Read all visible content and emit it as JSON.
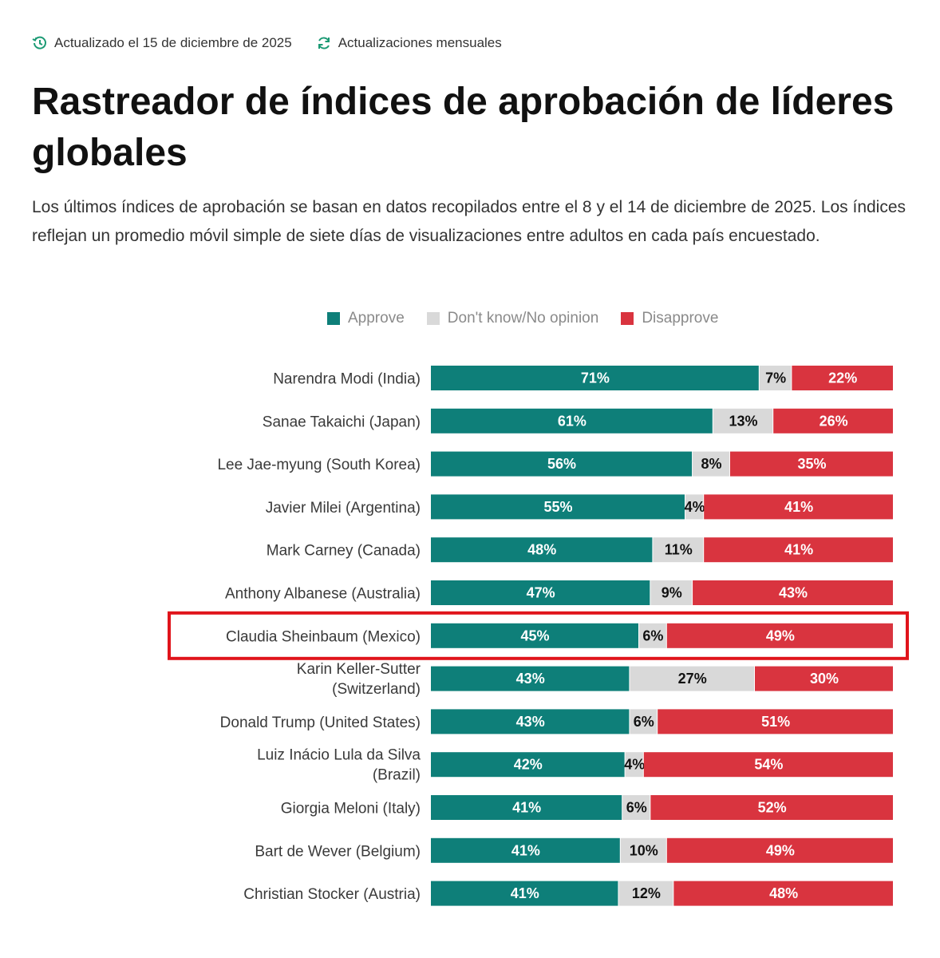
{
  "header": {
    "updated": "Actualizado el 15 de diciembre de 2025",
    "frequency": "Actualizaciones mensuales",
    "updated_icon": "clock-refresh-icon",
    "frequency_icon": "refresh-icon",
    "icon_color": "#1b9a74"
  },
  "title": "Rastreador de índices de aprobación de líderes globales",
  "description": "Los últimos índices de aprobación se basan en datos recopilados entre el 8 y el 14 de diciembre de 2025. Los índices reflejan un promedio móvil simple de siete días de visualizaciones entre adultos en cada país encuestado.",
  "chart_data": {
    "type": "bar",
    "orientation": "horizontal",
    "stacked": true,
    "normalized": true,
    "legend_position": "top",
    "highlighted_category": "Claudia Sheinbaum (Mexico)",
    "highlight_color": "#e0141b",
    "categories": [
      [
        "Narendra Modi (India)"
      ],
      [
        "Sanae Takaichi (Japan)"
      ],
      [
        "Lee Jae-myung (South Korea)"
      ],
      [
        "Javier Milei (Argentina)"
      ],
      [
        "Mark Carney (Canada)"
      ],
      [
        "Anthony Albanese (Australia)"
      ],
      [
        "Claudia Sheinbaum (Mexico)"
      ],
      [
        "Karin Keller-Sutter",
        "(Switzerland)"
      ],
      [
        "Donald Trump (United States)"
      ],
      [
        "Luiz Inácio Lula da Silva",
        "(Brazil)"
      ],
      [
        "Giorgia Meloni (Italy)"
      ],
      [
        "Bart de Wever (Belgium)"
      ],
      [
        "Christian Stocker (Austria)"
      ]
    ],
    "series": [
      {
        "name": "Approve",
        "color": "#0e7f79",
        "label_color": "#ffffff",
        "values": [
          71,
          61,
          56,
          55,
          48,
          47,
          45,
          43,
          43,
          42,
          41,
          41,
          41
        ]
      },
      {
        "name": "Don't know/No opinion",
        "color": "#d9d9d9",
        "label_color": "#111111",
        "values": [
          7,
          13,
          8,
          4,
          11,
          9,
          6,
          27,
          6,
          4,
          6,
          10,
          12
        ]
      },
      {
        "name": "Disapprove",
        "color": "#d9343f",
        "label_color": "#ffffff",
        "values": [
          22,
          26,
          35,
          41,
          41,
          43,
          49,
          30,
          51,
          54,
          52,
          49,
          48
        ]
      }
    ],
    "label_suffix": "%"
  }
}
